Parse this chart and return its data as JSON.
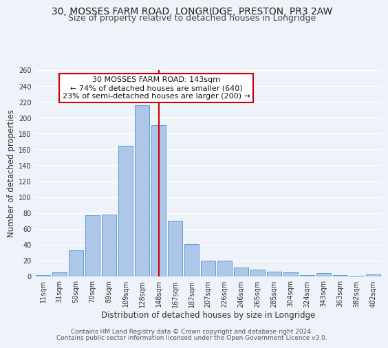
{
  "title": "30, MOSSES FARM ROAD, LONGRIDGE, PRESTON, PR3 2AW",
  "subtitle": "Size of property relative to detached houses in Longridge",
  "xlabel": "Distribution of detached houses by size in Longridge",
  "ylabel": "Number of detached properties",
  "footer1": "Contains HM Land Registry data © Crown copyright and database right 2024.",
  "footer2": "Contains public sector information licensed under the Open Government Licence v3.0.",
  "categories": [
    "11sqm",
    "31sqm",
    "50sqm",
    "70sqm",
    "89sqm",
    "109sqm",
    "128sqm",
    "148sqm",
    "167sqm",
    "187sqm",
    "207sqm",
    "226sqm",
    "246sqm",
    "265sqm",
    "285sqm",
    "304sqm",
    "324sqm",
    "343sqm",
    "363sqm",
    "382sqm",
    "402sqm"
  ],
  "values": [
    2,
    5,
    33,
    77,
    78,
    165,
    216,
    191,
    70,
    41,
    20,
    20,
    11,
    9,
    6,
    5,
    2,
    4,
    2,
    1,
    3
  ],
  "bar_color": "#aec6e8",
  "bar_edge_color": "#5a9fd4",
  "vline_x_index": 7,
  "vline_color": "#cc0000",
  "annotation_title": "30 MOSSES FARM ROAD: 143sqm",
  "annotation_line1": "← 74% of detached houses are smaller (640)",
  "annotation_line2": "23% of semi-detached houses are larger (200) →",
  "annotation_box_color": "#cc0000",
  "ylim": [
    0,
    260
  ],
  "yticks": [
    0,
    20,
    40,
    60,
    80,
    100,
    120,
    140,
    160,
    180,
    200,
    220,
    240,
    260
  ],
  "bg_color": "#eef2f9",
  "grid_color": "#ffffff",
  "title_fontsize": 10,
  "subtitle_fontsize": 9,
  "axis_label_fontsize": 8.5,
  "tick_fontsize": 7,
  "footer_fontsize": 6.5,
  "annotation_fontsize": 8
}
